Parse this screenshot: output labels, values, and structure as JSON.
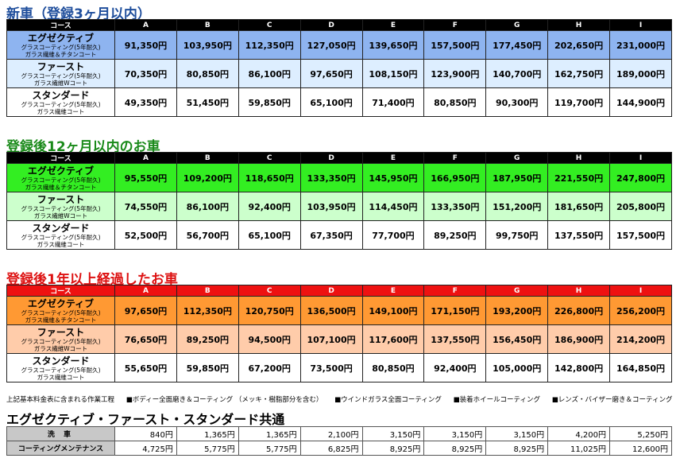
{
  "columns": [
    "A",
    "B",
    "C",
    "D",
    "E",
    "F",
    "G",
    "H",
    "I"
  ],
  "course_header": "コース",
  "sections": [
    {
      "title": "新車（登録3ヶ月以内）",
      "title_color": "#1f4e9c",
      "row_colors": [
        "#8eb4f0",
        "#ddeeff",
        "#ffffff"
      ],
      "rows": [
        {
          "name": "エグゼクティブ",
          "sub1": "グラスコーティング(5年耐久)",
          "sub2": "ガラス繊維＆チタンコート",
          "prices": [
            "91,350円",
            "103,950円",
            "112,350円",
            "127,050円",
            "139,650円",
            "157,500円",
            "177,450円",
            "202,650円",
            "231,000円"
          ]
        },
        {
          "name": "ファースト",
          "sub1": "グラスコーティング(5年耐久)",
          "sub2": "ガラス繊維Wコート",
          "prices": [
            "70,350円",
            "80,850円",
            "86,100円",
            "97,650円",
            "108,150円",
            "123,900円",
            "140,700円",
            "162,750円",
            "189,000円"
          ]
        },
        {
          "name": "スタンダード",
          "sub1": "グラスコーティング(5年耐久)",
          "sub2": "ガラス繊維コート",
          "prices": [
            "49,350円",
            "51,450円",
            "59,850円",
            "65,100円",
            "71,400円",
            "80,850円",
            "90,300円",
            "119,700円",
            "144,900円"
          ]
        }
      ]
    },
    {
      "title": "登録後12ヶ月以内のお車",
      "title_color": "#1a8a1a",
      "row_colors": [
        "#33ee22",
        "#ccffcc",
        "#ffffff"
      ],
      "rows": [
        {
          "name": "エグゼクティブ",
          "sub1": "グラスコーティング(5年耐久)",
          "sub2": "ガラス繊維＆チタンコート",
          "prices": [
            "95,550円",
            "109,200円",
            "118,650円",
            "133,350円",
            "145,950円",
            "166,950円",
            "187,950円",
            "221,550円",
            "247,800円"
          ]
        },
        {
          "name": "ファースト",
          "sub1": "グラスコーティング(5年耐久)",
          "sub2": "ガラス繊維Wコート",
          "prices": [
            "74,550円",
            "86,100円",
            "92,400円",
            "103,950円",
            "114,450円",
            "133,350円",
            "151,200円",
            "181,650円",
            "205,800円"
          ]
        },
        {
          "name": "スタンダード",
          "sub1": "グラスコーティング(5年耐久)",
          "sub2": "ガラス繊維コート",
          "prices": [
            "52,500円",
            "56,700円",
            "65,100円",
            "67,350円",
            "77,700円",
            "89,250円",
            "99,750円",
            "137,550円",
            "157,500円"
          ]
        }
      ]
    },
    {
      "title": "登録後1年以上経過したお車",
      "title_color": "#dd1111",
      "header_color": "#ee1111",
      "row_colors": [
        "#ff9933",
        "#ffccaa",
        "#ffffff"
      ],
      "rows": [
        {
          "name": "エグゼクティブ",
          "sub1": "グラスコーティング(5年耐久)",
          "sub2": "ガラス繊維＆チタンコート",
          "prices": [
            "97,650円",
            "112,350円",
            "120,750円",
            "136,500円",
            "149,100円",
            "171,150円",
            "193,200円",
            "226,800円",
            "256,200円"
          ]
        },
        {
          "name": "ファースト",
          "sub1": "グラスコーティング(5年耐久)",
          "sub2": "ガラス繊維Wコート",
          "prices": [
            "76,650円",
            "89,250円",
            "94,500円",
            "107,100円",
            "117,600円",
            "137,550円",
            "156,450円",
            "186,900円",
            "214,200円"
          ]
        },
        {
          "name": "スタンダード",
          "sub1": "グラスコーティング(5年耐久)",
          "sub2": "ガラス繊維コート",
          "prices": [
            "55,650円",
            "59,850円",
            "67,200円",
            "73,500円",
            "80,850円",
            "92,400円",
            "105,000円",
            "142,800円",
            "164,850円"
          ]
        }
      ]
    }
  ],
  "note": {
    "label": "上記基本料金表に含まれる作業工程",
    "items": [
      "■ボディー全面磨き＆コーティング （メッキ・樹脂部分を含む）",
      "■ウインドガラス全面コーティング",
      "■装着ホイールコーティング",
      "■レンズ・バイザー磨き＆コーティング"
    ]
  },
  "common": {
    "title": "エグゼクティブ・ファースト・スタンダード共通",
    "rows": [
      {
        "label": "洗 車",
        "values": [
          "840円",
          "1,365円",
          "1,365円",
          "2,100円",
          "3,150円",
          "3,150円",
          "3,150円",
          "4,200円",
          "5,250円"
        ]
      },
      {
        "label": "コーティングメンテナンス",
        "values": [
          "4,725円",
          "5,775円",
          "5,775円",
          "6,825円",
          "8,925円",
          "8,925円",
          "8,925円",
          "11,025円",
          "12,600円"
        ]
      }
    ]
  }
}
